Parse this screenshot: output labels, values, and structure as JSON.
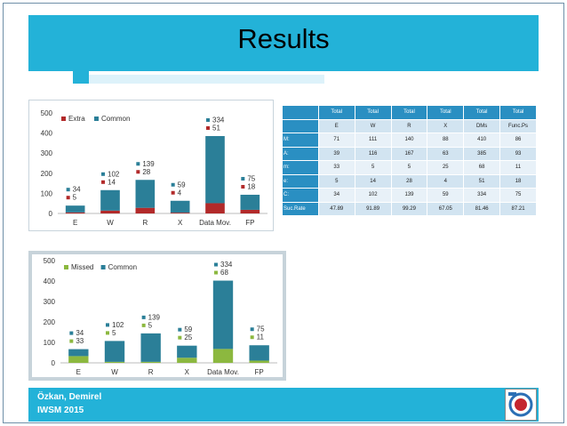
{
  "slide": {
    "title": "Results"
  },
  "footer": {
    "author": "Özkan, Demirel",
    "event": "IWSM 2015",
    "logo": "university-logo"
  },
  "colors": {
    "accent": "#23b2d8",
    "common": "#2b7f98",
    "extra": "#b22a2a",
    "missed": "#8cb83f",
    "table_header": "#2a8fc2"
  },
  "table": {
    "header_top": [
      "Total",
      "Total",
      "Total",
      "Total",
      "Total",
      "Total"
    ],
    "header_sub": [
      "E",
      "W",
      "R",
      "X",
      "DMs",
      "Func.Ps"
    ],
    "rows": [
      {
        "label": "M:",
        "values": [
          "71",
          "111",
          "140",
          "88",
          "410",
          "86"
        ]
      },
      {
        "label": "A:",
        "values": [
          "39",
          "116",
          "167",
          "63",
          "385",
          "93"
        ]
      },
      {
        "label": "m:",
        "values": [
          "33",
          "5",
          "5",
          "25",
          "68",
          "11"
        ]
      },
      {
        "label": "e:",
        "values": [
          "5",
          "14",
          "28",
          "4",
          "51",
          "18"
        ]
      },
      {
        "label": "C:",
        "values": [
          "34",
          "102",
          "139",
          "59",
          "334",
          "75"
        ]
      },
      {
        "label": "Suc.Rate",
        "values": [
          "47.89",
          "91.89",
          "99.29",
          "67.05",
          "81.46",
          "87.21"
        ]
      }
    ]
  },
  "chart_data": [
    {
      "type": "bar",
      "stacked": true,
      "categories": [
        "E",
        "W",
        "R",
        "X",
        "Data Mov.",
        "FP"
      ],
      "series": [
        {
          "name": "Extra",
          "values": [
            5,
            14,
            28,
            4,
            51,
            18
          ],
          "color": "#b22a2a"
        },
        {
          "name": "Common",
          "values": [
            34,
            102,
            139,
            59,
            334,
            75
          ],
          "color": "#2b7f98"
        }
      ],
      "yticks": [
        "0",
        "100",
        "200",
        "300",
        "400",
        "500"
      ],
      "ylim": [
        0,
        500
      ],
      "grid": false,
      "legend": "top-left"
    },
    {
      "type": "bar",
      "stacked": true,
      "categories": [
        "E",
        "W",
        "R",
        "X",
        "Data Mov.",
        "FP"
      ],
      "series": [
        {
          "name": "Missed",
          "values": [
            33,
            5,
            5,
            25,
            68,
            11
          ],
          "color": "#8cb83f"
        },
        {
          "name": "Common",
          "values": [
            34,
            102,
            139,
            59,
            334,
            75
          ],
          "color": "#2b7f98"
        }
      ],
      "yticks": [
        "0",
        "100",
        "200",
        "300",
        "400",
        "500"
      ],
      "ylim": [
        0,
        500
      ],
      "grid": false,
      "legend": "top-left"
    }
  ]
}
